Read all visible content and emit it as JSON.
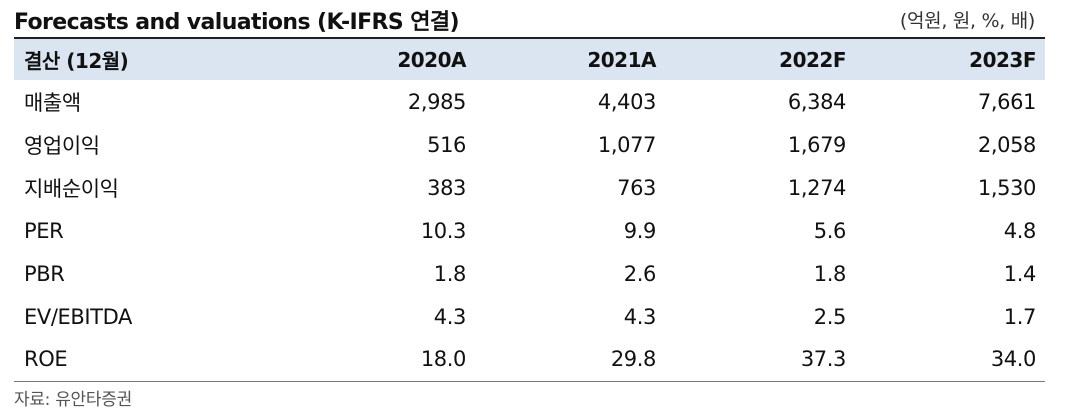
{
  "title": "Forecasts and valuations (K-IFRS 연결)",
  "unit": "(억원, 원, %, 배)",
  "table": {
    "header": [
      "결산 (12월)",
      "2020A",
      "2021A",
      "2022F",
      "2023F"
    ],
    "rows": [
      {
        "label": "매출액",
        "values": [
          "2,985",
          "4,403",
          "6,384",
          "7,661"
        ]
      },
      {
        "label": "영업이익",
        "values": [
          "516",
          "1,077",
          "1,679",
          "2,058"
        ]
      },
      {
        "label": "지배순이익",
        "values": [
          "383",
          "763",
          "1,274",
          "1,530"
        ]
      },
      {
        "label": "PER",
        "values": [
          "10.3",
          "9.9",
          "5.6",
          "4.8"
        ]
      },
      {
        "label": "PBR",
        "values": [
          "1.8",
          "2.6",
          "1.8",
          "1.4"
        ]
      },
      {
        "label": "EV/EBITDA",
        "values": [
          "4.3",
          "4.3",
          "2.5",
          "1.7"
        ]
      },
      {
        "label": "ROE",
        "values": [
          "18.0",
          "29.8",
          "37.3",
          "34.0"
        ]
      }
    ]
  },
  "source": "자료: 유안타증권"
}
